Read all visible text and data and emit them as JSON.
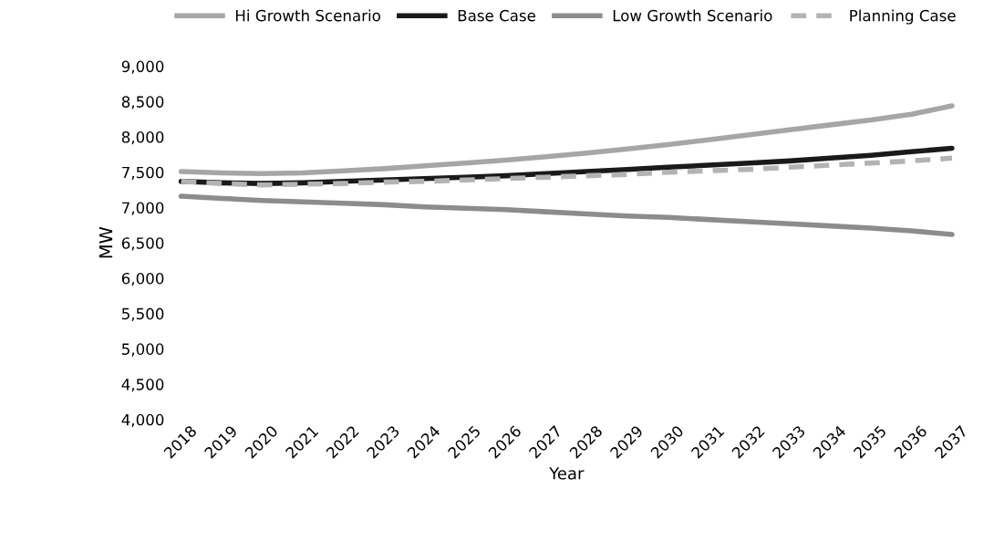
{
  "chart_data": {
    "type": "line",
    "xlabel": "Year",
    "ylabel": "MW",
    "categories": [
      "2018",
      "2019",
      "2020",
      "2021",
      "2022",
      "2023",
      "2024",
      "2025",
      "2026",
      "2027",
      "2028",
      "2029",
      "2030",
      "2031",
      "2032",
      "2033",
      "2034",
      "2035",
      "2036",
      "2037"
    ],
    "series": [
      {
        "name": "Hi Growth Scenario",
        "color": "#a6a6a6",
        "line_style": "solid",
        "values": [
          7510,
          7490,
          7480,
          7490,
          7520,
          7550,
          7590,
          7630,
          7670,
          7720,
          7770,
          7830,
          7890,
          7960,
          8030,
          8100,
          8170,
          8240,
          8320,
          8440
        ]
      },
      {
        "name": "Base Case",
        "color": "#1a1a1a",
        "line_style": "solid",
        "values": [
          7370,
          7350,
          7340,
          7350,
          7370,
          7390,
          7410,
          7430,
          7450,
          7480,
          7510,
          7540,
          7570,
          7600,
          7630,
          7660,
          7700,
          7740,
          7790,
          7840
        ]
      },
      {
        "name": "Low Growth Scenario",
        "color": "#8c8c8c",
        "line_style": "solid",
        "values": [
          7160,
          7130,
          7100,
          7080,
          7060,
          7040,
          7010,
          6990,
          6970,
          6940,
          6910,
          6880,
          6860,
          6830,
          6800,
          6770,
          6740,
          6710,
          6670,
          6620
        ]
      },
      {
        "name": "Planning Case",
        "color": "#b3b3b3",
        "line_style": "dashed",
        "values": [
          7370,
          7340,
          7320,
          7330,
          7340,
          7360,
          7370,
          7390,
          7410,
          7430,
          7450,
          7470,
          7500,
          7520,
          7540,
          7570,
          7600,
          7630,
          7660,
          7700
        ]
      }
    ],
    "ylim": [
      4000,
      9000
    ],
    "yticks": [
      {
        "value": 4000,
        "label": "4,000"
      },
      {
        "value": 4500,
        "label": "4,500"
      },
      {
        "value": 5000,
        "label": "5,000"
      },
      {
        "value": 5500,
        "label": "5,500"
      },
      {
        "value": 6000,
        "label": "6,000"
      },
      {
        "value": 6500,
        "label": "6,500"
      },
      {
        "value": 7000,
        "label": "7,000"
      },
      {
        "value": 7500,
        "label": "7,500"
      },
      {
        "value": 8000,
        "label": "8,000"
      },
      {
        "value": 8500,
        "label": "8,500"
      },
      {
        "value": 9000,
        "label": "9,000"
      }
    ],
    "grid": false,
    "legend": "top"
  }
}
